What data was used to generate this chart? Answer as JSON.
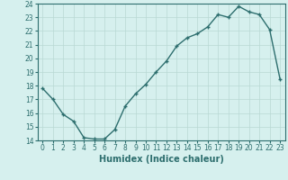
{
  "xlabel": "Humidex (Indice chaleur)",
  "x_values": [
    0,
    1,
    2,
    3,
    4,
    5,
    6,
    7,
    8,
    9,
    10,
    11,
    12,
    13,
    14,
    15,
    16,
    17,
    18,
    19,
    20,
    21,
    22,
    23
  ],
  "y_values": [
    17.8,
    17.0,
    15.9,
    15.4,
    14.2,
    14.1,
    14.1,
    14.8,
    16.5,
    17.4,
    18.1,
    19.0,
    19.8,
    20.9,
    21.5,
    21.8,
    22.3,
    23.2,
    23.0,
    23.8,
    23.4,
    23.2,
    22.1,
    18.5
  ],
  "xlim": [
    -0.5,
    23.5
  ],
  "ylim": [
    14,
    24
  ],
  "yticks": [
    14,
    15,
    16,
    17,
    18,
    19,
    20,
    21,
    22,
    23,
    24
  ],
  "xticks": [
    0,
    1,
    2,
    3,
    4,
    5,
    6,
    7,
    8,
    9,
    10,
    11,
    12,
    13,
    14,
    15,
    16,
    17,
    18,
    19,
    20,
    21,
    22,
    23
  ],
  "line_color": "#2d6e6e",
  "marker": "+",
  "markersize": 3.5,
  "linewidth": 1.0,
  "bg_color": "#d6f0ee",
  "grid_color": "#b8d8d4",
  "label_color": "#2d6e6e",
  "tick_color": "#2d6e6e",
  "tick_fontsize": 5.5,
  "xlabel_fontsize": 7.0
}
